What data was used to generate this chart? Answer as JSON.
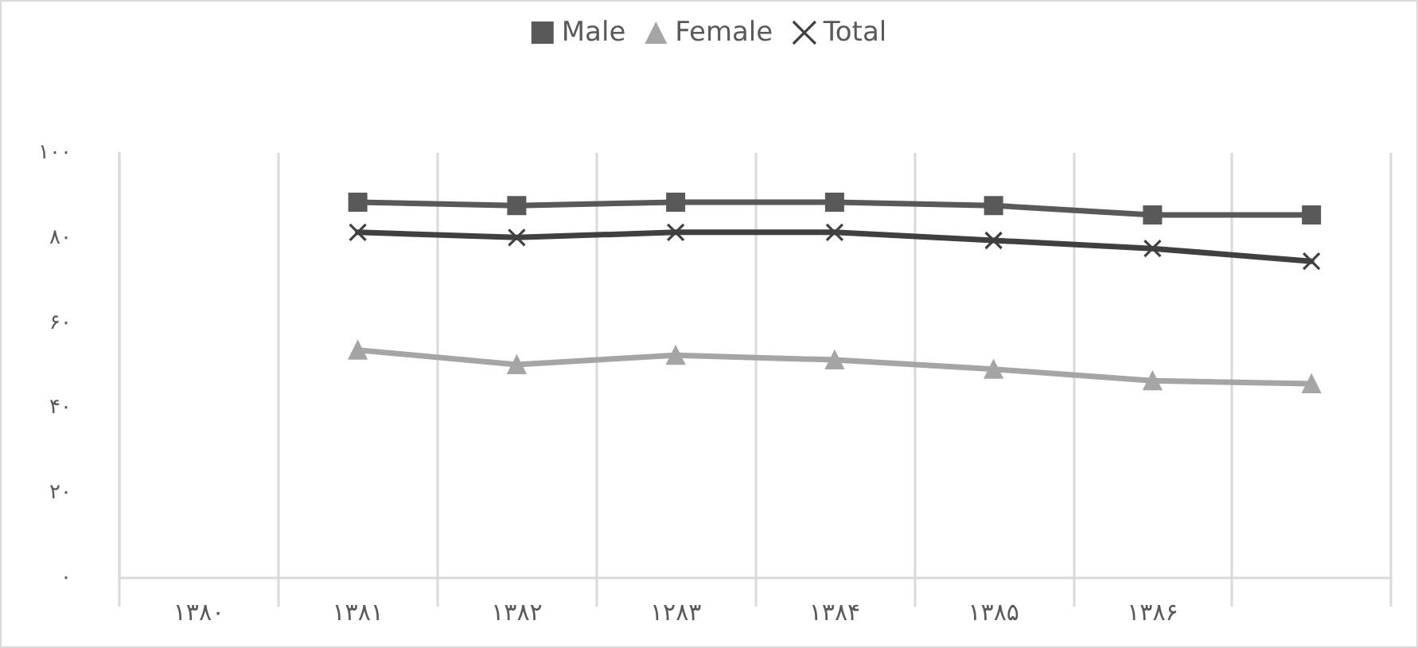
{
  "chart_data": {
    "type": "line",
    "categories": [
      "۱۳۸۰",
      "۱۳۸۱",
      "۱۳۸۲",
      "۱۲۸۳",
      "۱۳۸۴",
      "۱۳۸۵",
      "۱۳۸۶",
      null
    ],
    "series": [
      {
        "name": "Male",
        "color": "#595959",
        "marker": "square",
        "values": [
          null,
          88.4,
          87.6,
          88.4,
          88.4,
          87.6,
          85.4,
          85.4
        ]
      },
      {
        "name": "Female",
        "color": "#a5a5a5",
        "marker": "triangle",
        "values": [
          null,
          53.6,
          50.2,
          52.4,
          51.3,
          49.1,
          46.4,
          45.7
        ]
      },
      {
        "name": "Total",
        "color": "#404040",
        "marker": "cross",
        "values": [
          null,
          81.3,
          80.1,
          81.3,
          81.3,
          79.4,
          77.5,
          74.5
        ]
      }
    ],
    "ylim": [
      0,
      100
    ],
    "yticks": [
      {
        "value": 0,
        "label": "۰"
      },
      {
        "value": 20,
        "label": "۲۰"
      },
      {
        "value": 40,
        "label": "۴۰"
      },
      {
        "value": 60,
        "label": "۶۰"
      },
      {
        "value": 80,
        "label": "۸۰"
      },
      {
        "value": 100,
        "label": "۱۰۰"
      }
    ],
    "grid": "x",
    "legend": "top",
    "line_style": "solid"
  }
}
